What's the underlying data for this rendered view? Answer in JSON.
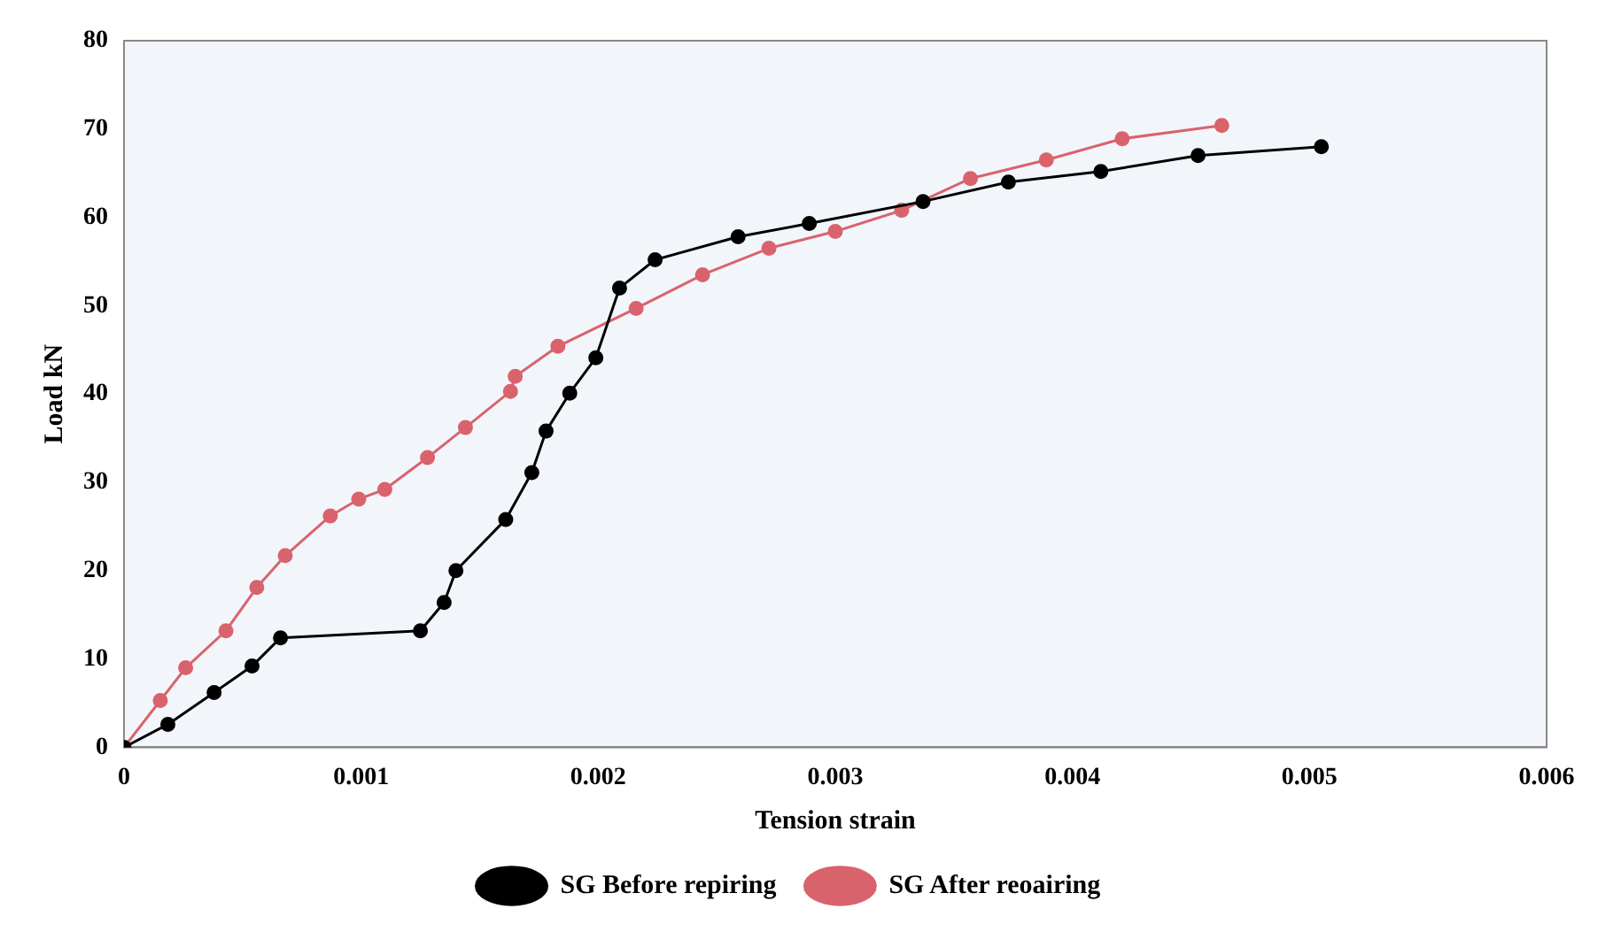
{
  "chart_data": {
    "type": "line",
    "xlabel": "Tension strain",
    "ylabel": "Load kN",
    "xlim": [
      0,
      0.006
    ],
    "ylim": [
      0,
      80
    ],
    "xticks": [
      0,
      0.001,
      0.002,
      0.003,
      0.004,
      0.005,
      0.006
    ],
    "yticks": [
      0,
      10,
      20,
      30,
      40,
      50,
      60,
      70,
      80
    ],
    "grid": false,
    "legend": "bottom",
    "marker": "circle",
    "line_style": "solid",
    "series": [
      {
        "name": "SG Before repiring",
        "color": "#000000",
        "x": [
          0,
          0.000185,
          0.00038,
          0.00054,
          0.00066,
          0.00125,
          0.00135,
          0.0014,
          0.00161,
          0.00172,
          0.00178,
          0.00188,
          0.00199,
          0.00209,
          0.00224,
          0.00259,
          0.00289,
          0.00337,
          0.00373,
          0.00412,
          0.00453,
          0.00505
        ],
        "values": [
          0,
          2.6,
          6.2,
          9.2,
          12.4,
          13.2,
          16.4,
          20,
          25.8,
          31.1,
          35.8,
          40.1,
          44.1,
          52,
          55.2,
          57.8,
          59.3,
          61.8,
          64,
          65.2,
          67,
          68
        ]
      },
      {
        "name": "SG After reoairing",
        "color": "#d9636d",
        "x": [
          0,
          0.000153,
          0.00026,
          0.00043,
          0.00056,
          0.00068,
          0.00087,
          0.00099,
          0.0011,
          0.00128,
          0.00144,
          0.00163,
          0.00165,
          0.00183,
          0.00216,
          0.00244,
          0.00272,
          0.003,
          0.00328,
          0.00357,
          0.00389,
          0.00421,
          0.00463
        ],
        "values": [
          0,
          5.3,
          9,
          13.2,
          18.1,
          21.7,
          26.2,
          28.1,
          29.2,
          32.8,
          36.2,
          40.3,
          42,
          45.4,
          49.7,
          53.5,
          56.5,
          58.4,
          60.8,
          64.4,
          66.5,
          68.9,
          70.4
        ]
      }
    ]
  }
}
